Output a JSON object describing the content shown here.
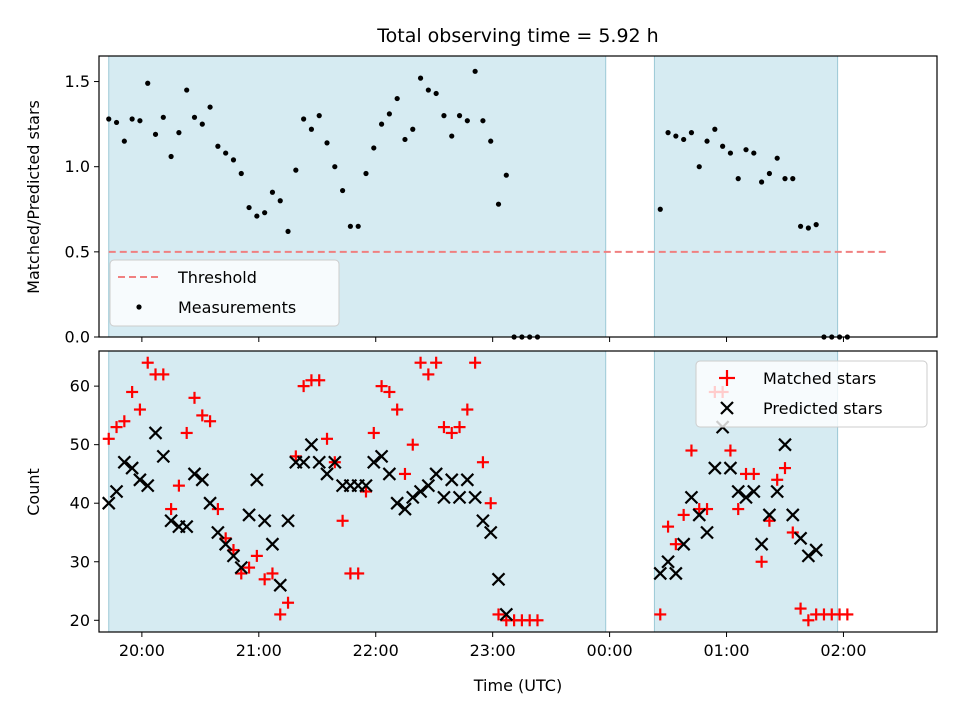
{
  "title": "Total observing time = 5.92 h",
  "chart_data": [
    {
      "type": "scatter",
      "ylabel": "Matched/Predicted stars",
      "xlim": [
        "19:38",
        "02:48"
      ],
      "ylim": [
        0,
        1.65
      ],
      "yticks": [
        "0.0",
        "0.5",
        "1.0",
        "1.5"
      ],
      "grid": false,
      "legend_position": "lower-left",
      "shaded_intervals": [
        [
          "19:43",
          "23:58"
        ],
        [
          "00:23",
          "01:57"
        ]
      ],
      "threshold": {
        "name": "Threshold",
        "value": 0.5,
        "x_start": "19:43",
        "x_end": "02:23",
        "color": "#f08080"
      },
      "series": [
        {
          "name": "Measurements",
          "color": "#000000",
          "points": [
            [
              "19:43",
              1.28
            ],
            [
              "19:47",
              1.26
            ],
            [
              "19:51",
              1.15
            ],
            [
              "19:55",
              1.28
            ],
            [
              "19:59",
              1.27
            ],
            [
              "20:03",
              1.49
            ],
            [
              "20:07",
              1.19
            ],
            [
              "20:11",
              1.29
            ],
            [
              "20:15",
              1.06
            ],
            [
              "20:19",
              1.2
            ],
            [
              "20:23",
              1.45
            ],
            [
              "20:27",
              1.29
            ],
            [
              "20:31",
              1.25
            ],
            [
              "20:35",
              1.35
            ],
            [
              "20:39",
              1.12
            ],
            [
              "20:43",
              1.08
            ],
            [
              "20:47",
              1.04
            ],
            [
              "20:51",
              0.96
            ],
            [
              "20:55",
              0.76
            ],
            [
              "20:59",
              0.71
            ],
            [
              "21:03",
              0.73
            ],
            [
              "21:07",
              0.85
            ],
            [
              "21:11",
              0.8
            ],
            [
              "21:15",
              0.62
            ],
            [
              "21:19",
              0.98
            ],
            [
              "21:23",
              1.28
            ],
            [
              "21:27",
              1.22
            ],
            [
              "21:31",
              1.3
            ],
            [
              "21:35",
              1.14
            ],
            [
              "21:39",
              1.0
            ],
            [
              "21:43",
              0.86
            ],
            [
              "21:47",
              0.65
            ],
            [
              "21:51",
              0.65
            ],
            [
              "21:55",
              0.96
            ],
            [
              "21:59",
              1.11
            ],
            [
              "22:03",
              1.25
            ],
            [
              "22:07",
              1.31
            ],
            [
              "22:11",
              1.4
            ],
            [
              "22:15",
              1.16
            ],
            [
              "22:19",
              1.22
            ],
            [
              "22:23",
              1.52
            ],
            [
              "22:27",
              1.45
            ],
            [
              "22:31",
              1.43
            ],
            [
              "22:35",
              1.3
            ],
            [
              "22:39",
              1.18
            ],
            [
              "22:43",
              1.3
            ],
            [
              "22:47",
              1.27
            ],
            [
              "22:51",
              1.56
            ],
            [
              "22:55",
              1.27
            ],
            [
              "22:59",
              1.15
            ],
            [
              "23:03",
              0.78
            ],
            [
              "23:07",
              0.95
            ],
            [
              "23:11",
              0.0
            ],
            [
              "23:15",
              0.0
            ],
            [
              "23:19",
              0.0
            ],
            [
              "23:23",
              0.0
            ],
            [
              "00:26",
              0.75
            ],
            [
              "00:30",
              1.2
            ],
            [
              "00:34",
              1.18
            ],
            [
              "00:38",
              1.16
            ],
            [
              "00:42",
              1.2
            ],
            [
              "00:46",
              1.0
            ],
            [
              "00:50",
              1.15
            ],
            [
              "00:54",
              1.22
            ],
            [
              "00:58",
              1.12
            ],
            [
              "01:02",
              1.08
            ],
            [
              "01:06",
              0.93
            ],
            [
              "01:10",
              1.1
            ],
            [
              "01:14",
              1.08
            ],
            [
              "01:18",
              0.91
            ],
            [
              "01:22",
              0.96
            ],
            [
              "01:26",
              1.05
            ],
            [
              "01:30",
              0.93
            ],
            [
              "01:34",
              0.93
            ],
            [
              "01:38",
              0.65
            ],
            [
              "01:42",
              0.64
            ],
            [
              "01:46",
              0.66
            ],
            [
              "01:50",
              0.0
            ],
            [
              "01:54",
              0.0
            ],
            [
              "01:58",
              0.0
            ],
            [
              "02:02",
              0.0
            ]
          ]
        }
      ]
    },
    {
      "type": "scatter",
      "xlabel": "Time (UTC)",
      "ylabel": "Count",
      "xlim": [
        "19:38",
        "02:48"
      ],
      "ylim": [
        18,
        66
      ],
      "xticks": [
        "20:00",
        "21:00",
        "22:00",
        "23:00",
        "00:00",
        "01:00",
        "02:00"
      ],
      "yticks": [
        "20",
        "30",
        "40",
        "50",
        "60"
      ],
      "grid": false,
      "legend_position": "upper-right",
      "shaded_intervals": [
        [
          "19:43",
          "23:58"
        ],
        [
          "00:23",
          "01:57"
        ]
      ],
      "series": [
        {
          "name": "Matched stars",
          "marker": "plus",
          "color": "#ff0000",
          "points": [
            [
              "19:43",
              51
            ],
            [
              "19:47",
              53
            ],
            [
              "19:51",
              54
            ],
            [
              "19:55",
              59
            ],
            [
              "19:59",
              56
            ],
            [
              "20:03",
              64
            ],
            [
              "20:07",
              62
            ],
            [
              "20:11",
              62
            ],
            [
              "20:15",
              39
            ],
            [
              "20:19",
              43
            ],
            [
              "20:23",
              52
            ],
            [
              "20:27",
              58
            ],
            [
              "20:31",
              55
            ],
            [
              "20:35",
              54
            ],
            [
              "20:39",
              39
            ],
            [
              "20:43",
              34
            ],
            [
              "20:47",
              32
            ],
            [
              "20:51",
              28
            ],
            [
              "20:55",
              29
            ],
            [
              "20:59",
              31
            ],
            [
              "21:03",
              27
            ],
            [
              "21:07",
              28
            ],
            [
              "21:11",
              21
            ],
            [
              "21:15",
              23
            ],
            [
              "21:19",
              48
            ],
            [
              "21:23",
              60
            ],
            [
              "21:27",
              61
            ],
            [
              "21:31",
              61
            ],
            [
              "21:35",
              51
            ],
            [
              "21:39",
              47
            ],
            [
              "21:43",
              37
            ],
            [
              "21:47",
              28
            ],
            [
              "21:51",
              28
            ],
            [
              "21:55",
              42
            ],
            [
              "21:59",
              52
            ],
            [
              "22:03",
              60
            ],
            [
              "22:07",
              59
            ],
            [
              "22:11",
              56
            ],
            [
              "22:15",
              45
            ],
            [
              "22:19",
              50
            ],
            [
              "22:23",
              64
            ],
            [
              "22:27",
              62
            ],
            [
              "22:31",
              64
            ],
            [
              "22:35",
              53
            ],
            [
              "22:39",
              52
            ],
            [
              "22:43",
              53
            ],
            [
              "22:47",
              56
            ],
            [
              "22:51",
              64
            ],
            [
              "22:55",
              47
            ],
            [
              "22:59",
              40
            ],
            [
              "23:03",
              21
            ],
            [
              "23:07",
              20
            ],
            [
              "23:11",
              20
            ],
            [
              "23:15",
              20
            ],
            [
              "23:19",
              20
            ],
            [
              "23:23",
              20
            ],
            [
              "00:26",
              21
            ],
            [
              "00:30",
              36
            ],
            [
              "00:34",
              33
            ],
            [
              "00:38",
              38
            ],
            [
              "00:42",
              49
            ],
            [
              "00:46",
              39
            ],
            [
              "00:50",
              39
            ],
            [
              "00:54",
              59
            ],
            [
              "00:58",
              59
            ],
            [
              "01:02",
              49
            ],
            [
              "01:06",
              39
            ],
            [
              "01:10",
              45
            ],
            [
              "01:14",
              45
            ],
            [
              "01:18",
              30
            ],
            [
              "01:22",
              37
            ],
            [
              "01:26",
              44
            ],
            [
              "01:30",
              46
            ],
            [
              "01:34",
              35
            ],
            [
              "01:38",
              22
            ],
            [
              "01:42",
              20
            ],
            [
              "01:46",
              21
            ],
            [
              "01:50",
              21
            ],
            [
              "01:54",
              21
            ],
            [
              "01:58",
              21
            ],
            [
              "02:02",
              21
            ]
          ]
        },
        {
          "name": "Predicted stars",
          "marker": "x",
          "color": "#000000",
          "points": [
            [
              "19:43",
              40
            ],
            [
              "19:47",
              42
            ],
            [
              "19:51",
              47
            ],
            [
              "19:55",
              46
            ],
            [
              "19:59",
              44
            ],
            [
              "20:03",
              43
            ],
            [
              "20:07",
              52
            ],
            [
              "20:11",
              48
            ],
            [
              "20:15",
              37
            ],
            [
              "20:19",
              36
            ],
            [
              "20:23",
              36
            ],
            [
              "20:27",
              45
            ],
            [
              "20:31",
              44
            ],
            [
              "20:35",
              40
            ],
            [
              "20:39",
              35
            ],
            [
              "20:43",
              33
            ],
            [
              "20:47",
              31
            ],
            [
              "20:51",
              29
            ],
            [
              "20:55",
              38
            ],
            [
              "20:59",
              44
            ],
            [
              "21:03",
              37
            ],
            [
              "21:07",
              33
            ],
            [
              "21:11",
              26
            ],
            [
              "21:15",
              37
            ],
            [
              "21:19",
              47
            ],
            [
              "21:23",
              47
            ],
            [
              "21:27",
              50
            ],
            [
              "21:31",
              47
            ],
            [
              "21:35",
              45
            ],
            [
              "21:39",
              47
            ],
            [
              "21:43",
              43
            ],
            [
              "21:47",
              43
            ],
            [
              "21:51",
              43
            ],
            [
              "21:55",
              43
            ],
            [
              "21:59",
              47
            ],
            [
              "22:03",
              48
            ],
            [
              "22:07",
              45
            ],
            [
              "22:11",
              40
            ],
            [
              "22:15",
              39
            ],
            [
              "22:19",
              41
            ],
            [
              "22:23",
              42
            ],
            [
              "22:27",
              43
            ],
            [
              "22:31",
              45
            ],
            [
              "22:35",
              41
            ],
            [
              "22:39",
              44
            ],
            [
              "22:43",
              41
            ],
            [
              "22:47",
              44
            ],
            [
              "22:51",
              41
            ],
            [
              "22:55",
              37
            ],
            [
              "22:59",
              35
            ],
            [
              "23:03",
              27
            ],
            [
              "23:07",
              21
            ],
            [
              "00:26",
              28
            ],
            [
              "00:30",
              30
            ],
            [
              "00:34",
              28
            ],
            [
              "00:38",
              33
            ],
            [
              "00:42",
              41
            ],
            [
              "00:46",
              38
            ],
            [
              "00:50",
              35
            ],
            [
              "00:54",
              46
            ],
            [
              "00:58",
              53
            ],
            [
              "01:02",
              46
            ],
            [
              "01:06",
              42
            ],
            [
              "01:10",
              41
            ],
            [
              "01:14",
              42
            ],
            [
              "01:18",
              33
            ],
            [
              "01:22",
              38
            ],
            [
              "01:26",
              42
            ],
            [
              "01:30",
              50
            ],
            [
              "01:34",
              38
            ],
            [
              "01:38",
              34
            ],
            [
              "01:42",
              31
            ],
            [
              "01:46",
              32
            ]
          ]
        }
      ]
    }
  ]
}
